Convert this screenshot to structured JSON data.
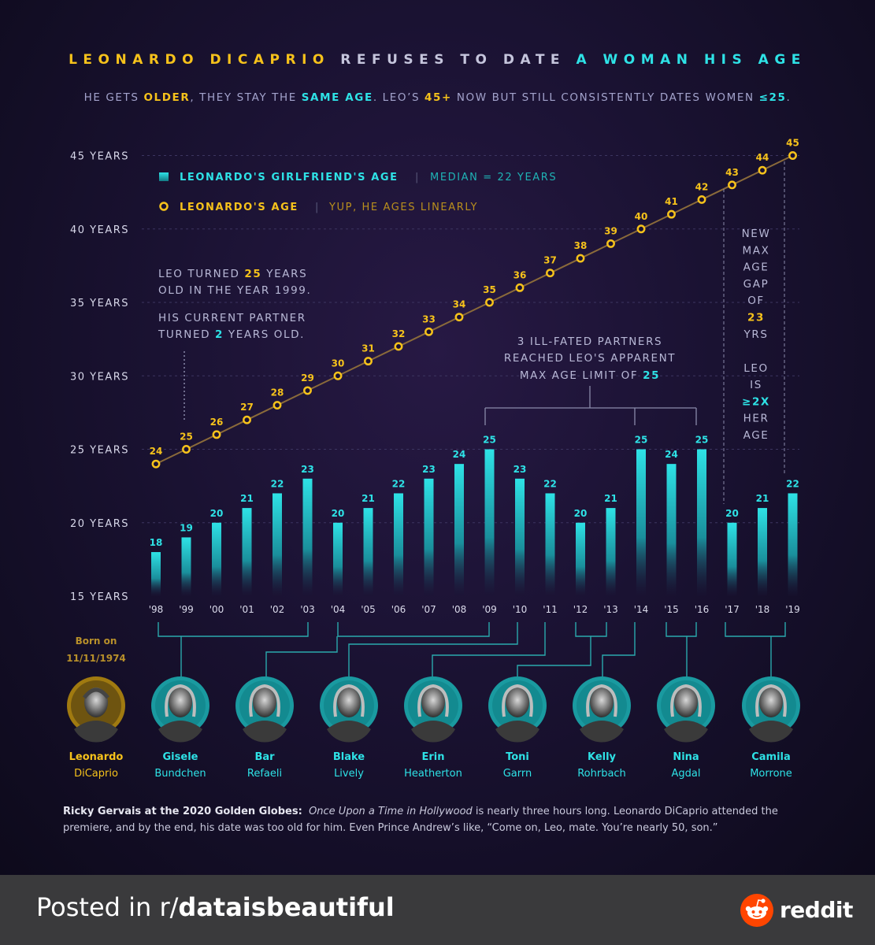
{
  "title": {
    "part1": "LEONARDO DICAPRIO",
    "part2": "REFUSES TO DATE",
    "part3": "A WOMAN HIS AGE"
  },
  "subtitle": {
    "s1": "HE GETS ",
    "s2": "OLDER",
    "s3": ", THEY STAY THE ",
    "s4": "SAME AGE",
    "s5": ". LEO’S ",
    "s6": "45+",
    "s7": " NOW BUT STILL CONSISTENTLY DATES WOMEN ",
    "s8": "≤25",
    "s9": "."
  },
  "legend": {
    "girlfriend": "LEONARDO'S GIRLFRIEND'S AGE",
    "girlfriend_sep": "|",
    "girlfriend_sub": "MEDIAN = 22 YEARS",
    "leo": "LEONARDO'S AGE",
    "leo_sep": "|",
    "leo_sub": "YUP, HE AGES LINEARLY"
  },
  "annotations": {
    "left_line1_a": "LEO TURNED ",
    "left_line1_b": "25",
    "left_line1_c": " YEARS",
    "left_line2": "OLD IN THE YEAR 1999.",
    "left_line3": "HIS CURRENT PARTNER",
    "left_line4_a": "TURNED ",
    "left_line4_b": "2",
    "left_line4_c": " YEARS OLD.",
    "mid_line1": "3 ILL-FATED PARTNERS",
    "mid_line2": "REACHED LEO'S APPARENT",
    "mid_line3_a": "MAX AGE LIMIT OF ",
    "mid_line3_b": "25",
    "right": [
      "NEW",
      "MAX",
      "AGE",
      "GAP",
      "OF"
    ],
    "right_num": "23",
    "right_yrs": "YRS",
    "right2": [
      "LEO",
      "IS"
    ],
    "right2_hl": "≥2X",
    "right3": [
      "HER",
      "AGE"
    ]
  },
  "chart_data": {
    "type": "bar",
    "title": "LEONARDO DICAPRIO REFUSES TO DATE A WOMAN HIS AGE",
    "categories": [
      "'98",
      "'99",
      "'00",
      "'01",
      "'02",
      "'03",
      "'04",
      "'05",
      "'06",
      "'07",
      "'08",
      "'09",
      "'10",
      "'11",
      "'12",
      "'13",
      "'14",
      "'15",
      "'16",
      "'17",
      "'18",
      "'19"
    ],
    "series": [
      {
        "name": "LEONARDO'S GIRLFRIEND'S AGE",
        "kind": "bar",
        "values": [
          18,
          19,
          20,
          21,
          22,
          23,
          20,
          21,
          22,
          23,
          24,
          25,
          23,
          22,
          20,
          21,
          25,
          24,
          25,
          20,
          21,
          22
        ]
      },
      {
        "name": "LEONARDO'S AGE",
        "kind": "line",
        "values": [
          24,
          25,
          26,
          27,
          28,
          29,
          30,
          31,
          32,
          33,
          34,
          35,
          36,
          37,
          38,
          39,
          40,
          41,
          42,
          43,
          44,
          45
        ]
      }
    ],
    "y_ticks": [
      15,
      20,
      25,
      30,
      35,
      40,
      45
    ],
    "y_tick_labels": [
      "15 YEARS",
      "20 YEARS",
      "25 YEARS",
      "30 YEARS",
      "35 YEARS",
      "40 YEARS",
      "45 YEARS"
    ],
    "ylim": [
      15,
      45
    ],
    "grid": true,
    "legend": "top-left"
  },
  "born": {
    "line1": "Born on",
    "line2": "11/11/1974"
  },
  "people": [
    {
      "first": "Leonardo",
      "last": "DiCaprio"
    },
    {
      "first": "Gisele",
      "last": "Bundchen"
    },
    {
      "first": "Bar",
      "last": "Refaeli"
    },
    {
      "first": "Blake",
      "last": "Lively"
    },
    {
      "first": "Erin",
      "last": "Heatherton"
    },
    {
      "first": "Toni",
      "last": "Garrn"
    },
    {
      "first": "Kelly",
      "last": "Rohrbach"
    },
    {
      "first": "Nina",
      "last": "Agdal"
    },
    {
      "first": "Camila",
      "last": "Morrone"
    }
  ],
  "quote": {
    "lead": "Ricky Gervais at the 2020 Golden Globes:",
    "film": "Once Upon a Time in Hollywood",
    "rest": " is nearly three hours long. Leonardo DiCaprio attended the premiere, and by the end, his date was too old for him.  Even Prince Andrew’s like, “Come on, Leo, mate. You’re nearly 50, son.”"
  },
  "footer": {
    "posted_prefix": "Posted in r/",
    "subreddit": "dataisbeautiful",
    "brand": "reddit"
  },
  "colors": {
    "gold": "#f6c21b",
    "cyan": "#2ee2e6",
    "background": "#1a1232",
    "footer": "#3a3a3c"
  }
}
